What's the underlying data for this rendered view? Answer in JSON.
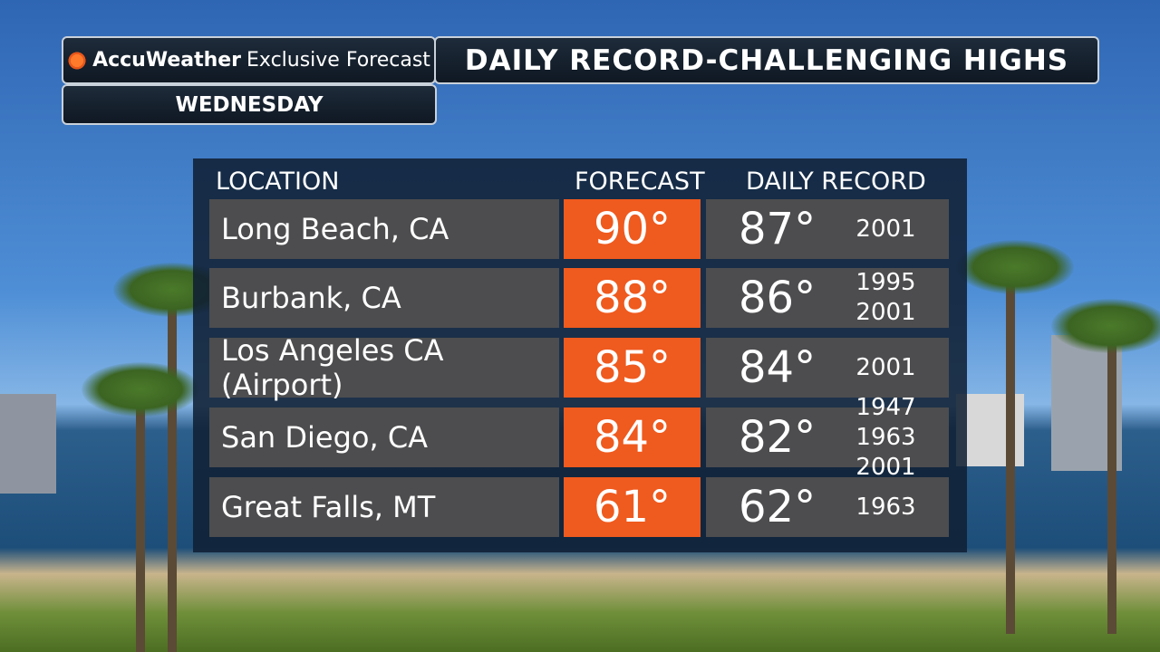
{
  "header": {
    "brand": "AccuWeather",
    "subtitle": "Exclusive Forecast",
    "title": "DAILY RECORD-CHALLENGING HIGHS",
    "day": "WEDNESDAY"
  },
  "table": {
    "columns": [
      "LOCATION",
      "FORECAST",
      "DAILY RECORD"
    ],
    "rows": [
      {
        "location": "Long Beach, CA",
        "forecast": "90°",
        "record": "87°",
        "years": [
          "2001"
        ]
      },
      {
        "location": "Burbank, CA",
        "forecast": "88°",
        "record": "86°",
        "years": [
          "1995",
          "2001"
        ]
      },
      {
        "location": "Los Angeles CA (Airport)",
        "forecast": "85°",
        "record": "84°",
        "years": [
          "2001"
        ]
      },
      {
        "location": "San Diego, CA",
        "forecast": "84°",
        "record": "82°",
        "years": [
          "1947",
          "1963 2001"
        ]
      },
      {
        "location": "Great Falls, MT",
        "forecast": "61°",
        "record": "62°",
        "years": [
          "1963"
        ]
      }
    ]
  }
}
